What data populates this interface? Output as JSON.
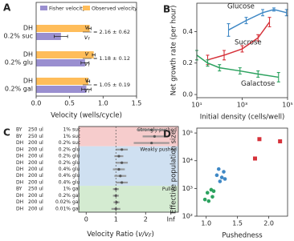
{
  "chart_data": [
    {
      "type": "bar",
      "panel": "A",
      "orientation": "horizontal",
      "categories": [
        [
          "DH",
          "0.2% suc"
        ],
        [
          "DH",
          "0.2% glu"
        ],
        [
          "DH",
          "0.2% gal"
        ]
      ],
      "series": [
        {
          "name": "Fisher velocity",
          "color": "#9a8fd0",
          "values": [
            0.37,
            0.73,
            0.75
          ],
          "errors": [
            0.1,
            0.06,
            0.07
          ]
        },
        {
          "name": "Observed velocity",
          "color": "#ffbd5a",
          "values": [
            0.8,
            0.86,
            0.78
          ],
          "errors": [
            0.02,
            0.02,
            0.02
          ]
        }
      ],
      "ratio_symbol": {
        "num": "v",
        "den": "v",
        "den_sub": "f"
      },
      "ratio_labels": [
        "= 2.16 ± 0.62",
        "= 1.18 ± 0.12",
        "= 1.05 ± 0.19"
      ],
      "x_label": "Velocity (wells/cycle)",
      "xlim": [
        0,
        1.5
      ],
      "xticks": [
        {
          "value": 0,
          "label": "0.0"
        },
        0.5,
        {
          "value": 1,
          "label": "1.0"
        },
        1.5
      ]
    },
    {
      "type": "line",
      "panel": "B",
      "xlog": true,
      "x_label": "Initial density (cells/well)",
      "y_label": "Net growth rate (per hour)",
      "xlim": [
        10,
        100000
      ],
      "ylim": [
        -0.02,
        0.58
      ],
      "xticks": [
        {
          "value": 10,
          "label": "10¹"
        },
        {
          "value": 1000,
          "label": "10³"
        },
        {
          "value": 100000,
          "label": "10⁵"
        }
      ],
      "yticks": [
        {
          "value": 0,
          "label": "0.0"
        },
        0.2,
        0.4
      ],
      "series": [
        {
          "name": "Glucose",
          "color": "#3f88c5",
          "x": [
            250,
            1500,
            8000,
            25000,
            90000
          ],
          "values": [
            0.41,
            0.47,
            0.52,
            0.54,
            0.52
          ],
          "errors": [
            0.04,
            0.02,
            0.02,
            0.01,
            0.02
          ]
        },
        {
          "name": "Sucrose",
          "color": "#d6323a",
          "x": [
            30,
            160,
            1000,
            5000,
            16000
          ],
          "values": [
            0.22,
            0.25,
            0.29,
            0.36,
            0.46
          ],
          "errors": [
            0.03,
            0.03,
            0.02,
            0.02,
            0.03
          ]
        },
        {
          "name": "Galactose",
          "color": "#2ca25f",
          "x": [
            10,
            30,
            100,
            800,
            5000,
            40000
          ],
          "values": [
            0.25,
            0.2,
            0.17,
            0.15,
            0.13,
            0.11
          ],
          "errors": [
            0.03,
            0.02,
            0.02,
            0.02,
            0.02,
            0.03
          ]
        }
      ]
    },
    {
      "type": "dot",
      "panel": "C",
      "rows": [
        [
          "BY",
          "250 ul",
          "1%",
          "suc"
        ],
        [
          "BY",
          "250 ul",
          "1%",
          "suc"
        ],
        [
          "DH",
          "200 ul",
          "0.2%",
          "suc"
        ],
        [
          "DH",
          "200 ul",
          "0.2%",
          "glu"
        ],
        [
          "DH",
          "200 ul",
          "0.2%",
          "glu"
        ],
        [
          "DH",
          "200 ul",
          "0.2%",
          "glu"
        ],
        [
          "DH",
          "200 ul",
          "0.4%",
          "glu"
        ],
        [
          "DH",
          "200 ul",
          "0.4%",
          "glu"
        ],
        [
          "DH",
          "200 ul",
          "0.4%",
          "glu"
        ],
        [
          "BY",
          "250 ul",
          "1%",
          "gal"
        ],
        [
          "DH",
          "200 ul",
          "0.2%",
          "gal"
        ],
        [
          "DH",
          "200 ul",
          "0.02%",
          "gal"
        ],
        [
          "DH",
          "200 ul",
          "0.01%",
          "gal"
        ]
      ],
      "values": [
        2.2,
        2.3,
        2.2,
        1.2,
        1.1,
        1.2,
        1.1,
        1.15,
        1.2,
        1.0,
        1.0,
        1.02,
        1.0
      ],
      "errors": [
        0.5,
        0.4,
        0.6,
        0.2,
        0.15,
        0.2,
        0.2,
        0.2,
        0.2,
        0.1,
        0.1,
        0.1,
        0.15
      ],
      "color": "#888888",
      "regions": [
        {
          "label": "Strongly pushed",
          "color": "#d6323a",
          "fill": "#f6cccc",
          "from": 0,
          "to": 2
        },
        {
          "label": "Weakly pushed",
          "color": "#3f88c5",
          "fill": "#cfe0f1",
          "from": 3,
          "to": 8
        },
        {
          "label": "Pulled",
          "color": "#2ca25f",
          "fill": "#d4ebd1",
          "from": 9,
          "to": 12
        }
      ],
      "reference_line": 1,
      "x_label": [
        "Velocity Ratio (",
        "v/v",
        "F",
        ")"
      ],
      "xlim": [
        -0.25,
        3.1
      ],
      "xticks": [
        0,
        1,
        2,
        {
          "value": 2.85,
          "label": "Inf"
        }
      ]
    },
    {
      "type": "scatter",
      "panel": "D",
      "ylog": true,
      "x_label": "Pushedness",
      "y_label": "Effective population size",
      "xlim": [
        0.85,
        2.3
      ],
      "ylim": [
        100,
        150000
      ],
      "xticks": [
        {
          "value": 1,
          "label": "1.0"
        },
        1.5,
        {
          "value": 2,
          "label": "2.0"
        }
      ],
      "yticks": [
        {
          "value": 100,
          "label": "10²"
        },
        {
          "value": 1000,
          "label": "10³"
        },
        {
          "value": 10000,
          "label": "10⁴"
        },
        {
          "value": 100000,
          "label": "10⁵"
        }
      ],
      "series": [
        {
          "color": "#2ca25f",
          "marker": "circle",
          "x": [
            0.98,
            1.02,
            1.04,
            1.08,
            1.1,
            1.12
          ],
          "values": [
            400,
            700,
            350,
            900,
            500,
            800
          ]
        },
        {
          "color": "#3f88c5",
          "marker": "circle",
          "x": [
            1.17,
            1.2,
            1.22,
            1.25,
            1.28,
            1.3
          ],
          "values": [
            3000,
            5000,
            1800,
            2500,
            4000,
            2200
          ]
        },
        {
          "color": "#d6323a",
          "marker": "square",
          "x": [
            1.78,
            1.85,
            2.18
          ],
          "values": [
            12000,
            60000,
            50000
          ]
        }
      ]
    }
  ]
}
